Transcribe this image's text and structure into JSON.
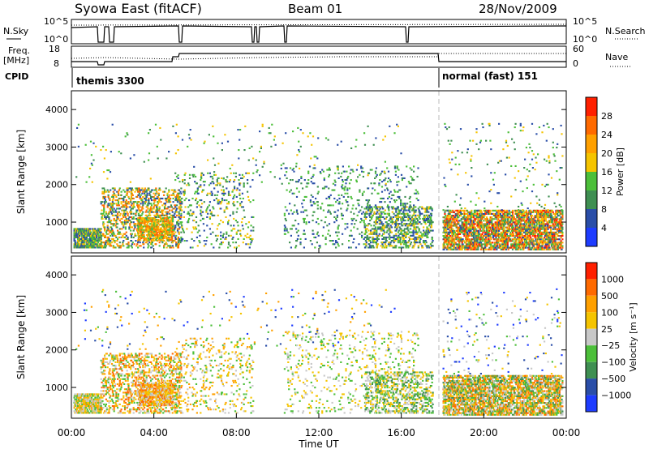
{
  "header": {
    "station": "Syowa East (fitACF)",
    "beam": "Beam 01",
    "date": "28/Nov/2009"
  },
  "top_panels": {
    "nsky_label": "N.Sky",
    "nsky_ticks": [
      "10^5",
      "10^0"
    ],
    "nsearch_label": "N.Search",
    "nsearch_ticks": [
      "10^5",
      "10^0"
    ],
    "freq_label_1": "Freq.",
    "freq_label_2": "[MHz]",
    "freq_ticks": [
      "18",
      "8"
    ],
    "nave_label": "Nave",
    "nave_ticks": [
      "60",
      "0"
    ],
    "cpid_label": "CPID",
    "cpid_segments": [
      {
        "label": "themis 3300"
      },
      {
        "label": "normal (fast) 151"
      }
    ]
  },
  "colors": {
    "power_scale": [
      "#1e3cff",
      "#2a4ea8",
      "#3f8f52",
      "#4cbf3a",
      "#f5c400",
      "#ffa000",
      "#ff6a00",
      "#ff2000"
    ],
    "velocity_scale": [
      "#1e3cff",
      "#2a4ea8",
      "#3f8f52",
      "#4cbf3a",
      "#c8c8c8",
      "#f5c400",
      "#ffa000",
      "#ff6a00",
      "#ff2000"
    ]
  },
  "chart_data": [
    {
      "type": "heatmap",
      "panel": "power",
      "ylabel": "Slant Range [km]",
      "colorbar_label": "Power [dB]",
      "colorbar_ticks": [
        "28",
        "24",
        "20",
        "16",
        "12",
        "8",
        "4"
      ],
      "ylim": [
        180,
        4500
      ],
      "yticks": [
        "4000",
        "3000",
        "2000",
        "1000"
      ],
      "xlim": [
        0,
        24
      ],
      "xticks": [
        "00:00",
        "04:00",
        "08:00",
        "12:00",
        "16:00",
        "20:00",
        "00:00"
      ],
      "xlabel": "Time UT",
      "scatter_regions": [
        {
          "t0": 0.1,
          "t1": 1.4,
          "r0": 300,
          "r1": 800,
          "density": 0.7,
          "levels": [
            1,
            2,
            3,
            4
          ]
        },
        {
          "t0": 1.4,
          "t1": 5.3,
          "r0": 300,
          "r1": 1900,
          "density": 0.25,
          "levels": [
            1,
            2,
            3,
            4,
            5,
            6
          ]
        },
        {
          "t0": 3.2,
          "t1": 4.9,
          "r0": 500,
          "r1": 1100,
          "density": 0.55,
          "levels": [
            3,
            4,
            5,
            6
          ]
        },
        {
          "t0": 5.0,
          "t1": 8.8,
          "r0": 300,
          "r1": 2300,
          "density": 0.08,
          "levels": [
            1,
            2,
            3,
            4
          ]
        },
        {
          "t0": 10.3,
          "t1": 16.8,
          "r0": 300,
          "r1": 2500,
          "density": 0.06,
          "levels": [
            1,
            2,
            3
          ]
        },
        {
          "t0": 14.2,
          "t1": 17.5,
          "r0": 300,
          "r1": 1400,
          "density": 0.25,
          "levels": [
            1,
            2,
            3,
            4
          ]
        },
        {
          "t0": 18.0,
          "t1": 23.8,
          "r0": 250,
          "r1": 1300,
          "density": 0.55,
          "levels": [
            1,
            2,
            3,
            4,
            5,
            6,
            7
          ]
        },
        {
          "t0": 18.0,
          "t1": 23.8,
          "r0": 1300,
          "r1": 3600,
          "density": 0.02,
          "levels": [
            1,
            2,
            3,
            4
          ]
        },
        {
          "t0": 0.2,
          "t1": 16.0,
          "r0": 2000,
          "r1": 3600,
          "density": 0.012,
          "levels": [
            1,
            2,
            3,
            4
          ]
        }
      ]
    },
    {
      "type": "heatmap",
      "panel": "velocity",
      "ylabel": "Slant Range [km]",
      "colorbar_label": "Velocity [m s⁻¹]",
      "colorbar_ticks": [
        "1000",
        "500",
        "100",
        "25",
        "−25",
        "−100",
        "−500",
        "−1000"
      ],
      "ylim": [
        180,
        4500
      ],
      "yticks": [
        "4000",
        "3000",
        "2000",
        "1000"
      ],
      "xlim": [
        0,
        24
      ],
      "xticks": [
        "00:00",
        "04:00",
        "08:00",
        "12:00",
        "16:00",
        "20:00",
        "00:00"
      ],
      "xlabel": "Time UT",
      "scatter_regions": [
        {
          "t0": 0.1,
          "t1": 1.4,
          "r0": 300,
          "r1": 800,
          "density": 0.7,
          "levels": [
            3,
            4,
            5,
            6
          ]
        },
        {
          "t0": 1.4,
          "t1": 5.3,
          "r0": 300,
          "r1": 1900,
          "density": 0.25,
          "levels": [
            3,
            4,
            5,
            6,
            7
          ]
        },
        {
          "t0": 3.2,
          "t1": 4.9,
          "r0": 500,
          "r1": 1100,
          "density": 0.55,
          "levels": [
            4,
            5,
            6,
            7
          ]
        },
        {
          "t0": 5.0,
          "t1": 8.8,
          "r0": 300,
          "r1": 2300,
          "density": 0.08,
          "levels": [
            3,
            4,
            5,
            6
          ]
        },
        {
          "t0": 10.3,
          "t1": 16.8,
          "r0": 300,
          "r1": 2500,
          "density": 0.06,
          "levels": [
            3,
            4,
            5
          ]
        },
        {
          "t0": 14.2,
          "t1": 17.5,
          "r0": 300,
          "r1": 1400,
          "density": 0.25,
          "levels": [
            2,
            3,
            4,
            5
          ]
        },
        {
          "t0": 18.0,
          "t1": 23.8,
          "r0": 250,
          "r1": 1300,
          "density": 0.55,
          "levels": [
            2,
            3,
            4,
            5,
            6,
            7
          ]
        },
        {
          "t0": 18.0,
          "t1": 23.8,
          "r0": 1300,
          "r1": 3600,
          "density": 0.02,
          "levels": [
            0,
            1,
            3,
            4,
            5
          ]
        },
        {
          "t0": 0.2,
          "t1": 16.0,
          "r0": 2000,
          "r1": 3600,
          "density": 0.012,
          "levels": [
            0,
            1,
            3,
            5,
            6
          ]
        }
      ]
    }
  ]
}
